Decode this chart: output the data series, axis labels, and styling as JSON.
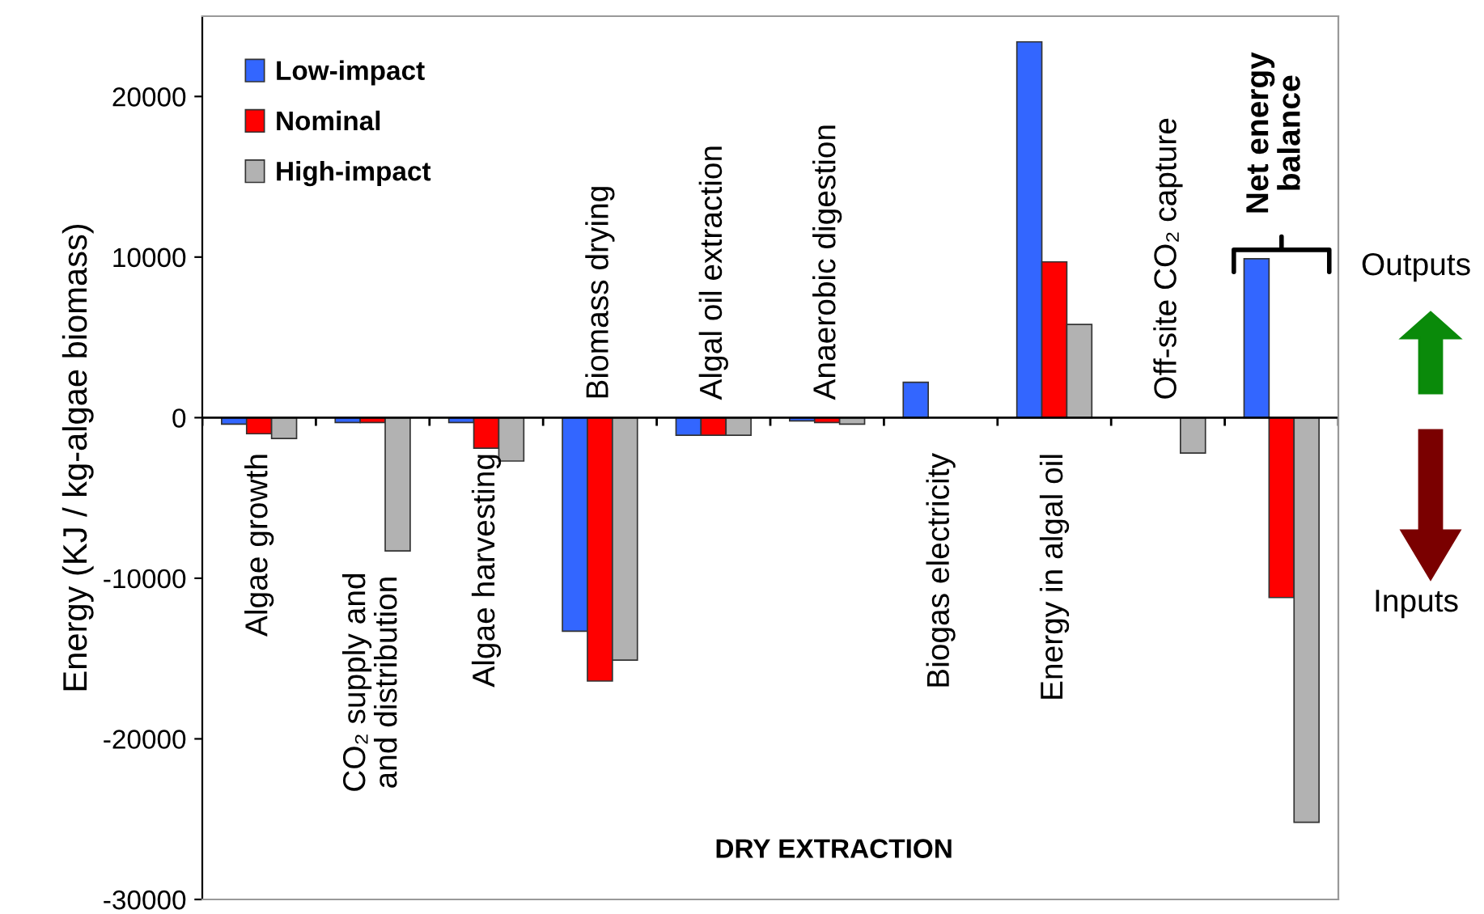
{
  "chart_data": {
    "type": "bar",
    "ylabel": "Energy (KJ / kg-algae biomass)",
    "categories": [
      "Algae growth",
      "CO₂ supply and\nand distribution",
      "Algae harvesting",
      "Biomass drying",
      "Algal oil extraction",
      "Anaerobic digestion",
      "Biogas electricity",
      "Energy in algal oil",
      "Off-site CO₂ capture",
      "Net energy\nbalance"
    ],
    "series": [
      {
        "name": "Low-impact",
        "color": "#3366ff",
        "values": [
          -400,
          -300,
          -300,
          -13300,
          -1100,
          -200,
          2200,
          23400,
          null,
          9900
        ]
      },
      {
        "name": "Nominal",
        "color": "#ff0000",
        "values": [
          -1000,
          -300,
          -1900,
          -16400,
          -1100,
          -300,
          null,
          9700,
          null,
          -11200
        ]
      },
      {
        "name": "High-impact",
        "color": "#b2b2b2",
        "values": [
          -1300,
          -8300,
          -2700,
          -15100,
          -1100,
          -400,
          null,
          5800,
          -2200,
          -25200
        ]
      }
    ],
    "ylim": [
      -30000,
      25000
    ],
    "yticks": [
      -30000,
      -20000,
      -10000,
      0,
      10000,
      20000
    ],
    "legend": "top left",
    "grid": false,
    "annotations": [
      "DRY EXTRACTION",
      "Outputs",
      "Inputs"
    ]
  }
}
